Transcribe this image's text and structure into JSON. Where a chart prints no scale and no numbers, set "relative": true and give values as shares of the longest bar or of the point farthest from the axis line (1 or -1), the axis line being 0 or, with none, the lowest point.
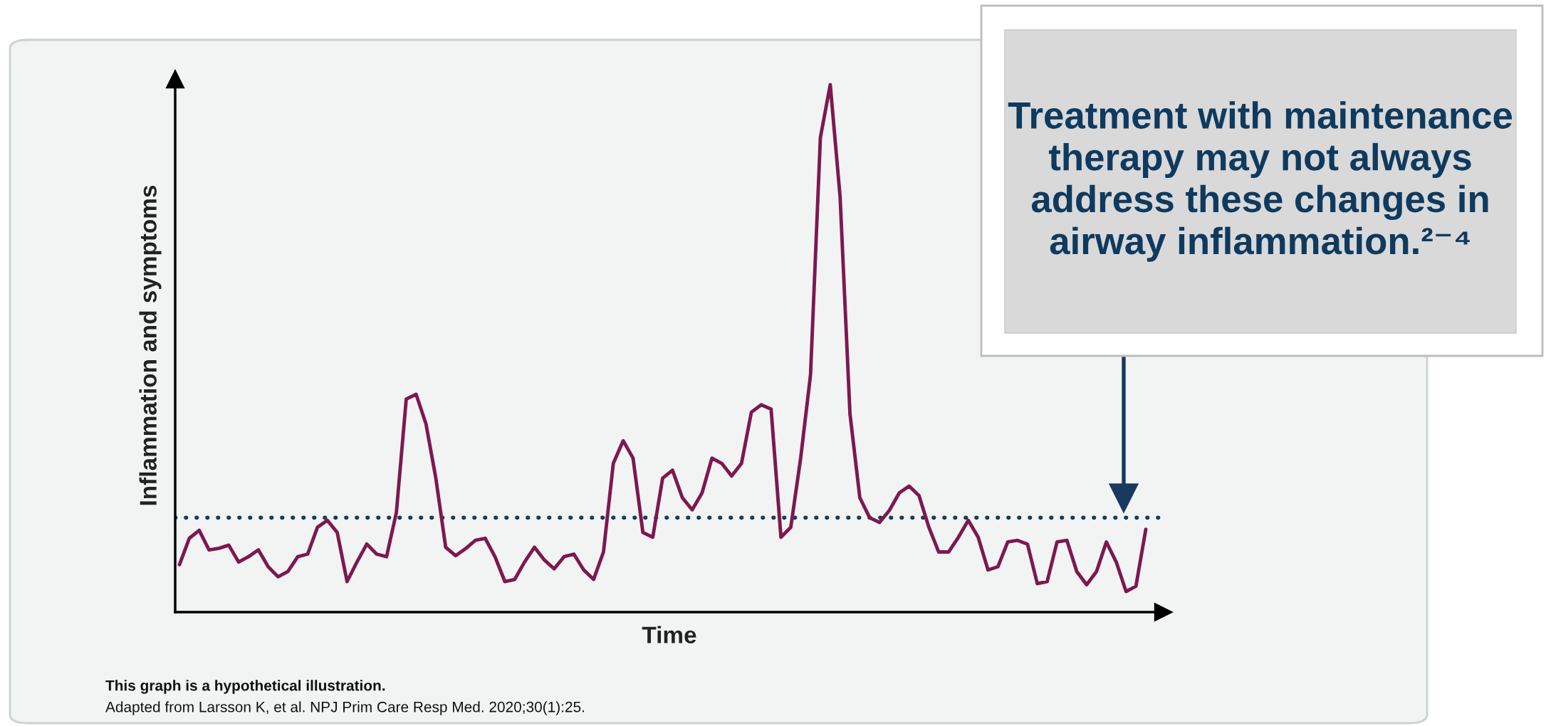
{
  "chart_data": {
    "type": "line",
    "relative": true,
    "xlabel": "Time",
    "ylabel": "Inflammation and symptoms",
    "tick_labels": false,
    "marker": "none",
    "line_style": "solid",
    "categories": [
      null,
      null,
      null,
      null,
      null,
      null,
      null,
      null,
      null,
      null,
      null,
      null,
      null,
      null,
      null,
      null,
      null,
      null,
      null,
      null,
      null,
      null,
      null,
      null,
      null,
      null,
      null,
      null,
      null,
      null,
      null,
      null,
      null,
      null,
      null,
      null,
      null,
      null,
      null,
      null,
      null,
      null,
      null,
      null,
      null,
      null,
      null,
      null,
      null,
      null,
      null,
      null,
      null,
      null,
      null,
      null,
      null,
      null,
      null,
      null,
      null,
      null,
      null,
      null,
      null,
      null,
      null,
      null,
      null,
      null,
      null,
      null,
      null,
      null,
      null,
      null,
      null,
      null,
      null,
      null,
      null,
      null,
      null,
      null,
      null,
      null,
      null,
      null,
      null,
      null,
      null,
      null,
      null,
      null,
      null,
      null,
      null,
      null,
      null
    ],
    "series": [
      {
        "color": "#7d1850",
        "values": [
          0.09,
          0.14,
          0.155,
          0.118,
          0.121,
          0.127,
          0.095,
          0.105,
          0.118,
          0.086,
          0.067,
          0.077,
          0.105,
          0.11,
          0.161,
          0.174,
          0.151,
          0.058,
          0.095,
          0.129,
          0.11,
          0.105,
          0.189,
          0.404,
          0.413,
          0.357,
          0.254,
          0.123,
          0.107,
          0.12,
          0.136,
          0.14,
          0.105,
          0.058,
          0.062,
          0.095,
          0.123,
          0.099,
          0.082,
          0.105,
          0.11,
          0.08,
          0.062,
          0.114,
          0.282,
          0.325,
          0.292,
          0.151,
          0.142,
          0.254,
          0.269,
          0.217,
          0.194,
          0.226,
          0.292,
          0.282,
          0.258,
          0.282,
          0.379,
          0.393,
          0.385,
          0.142,
          0.161,
          0.292,
          0.45,
          0.9,
          1.0,
          0.787,
          0.376,
          0.217,
          0.179,
          0.17,
          0.193,
          0.226,
          0.239,
          0.221,
          0.161,
          0.114,
          0.114,
          0.142,
          0.174,
          0.142,
          0.08,
          0.086,
          0.133,
          0.136,
          0.129,
          0.054,
          0.058,
          0.133,
          0.136,
          0.077,
          0.052,
          0.077,
          0.133,
          0.095,
          0.039,
          0.049,
          0.157
        ]
      }
    ],
    "ref_lines": [
      {
        "axis": "y",
        "value": 0.179,
        "color": "#173a5e",
        "line_style": "dotted"
      }
    ],
    "annotations": [
      "Treatment with maintenance therapy may not always address these changes in airway inflammation.²⁻⁴",
      "This graph is a hypothetical illustration.",
      "Adapted from Larsson K, et al. NPJ Prim Care Resp Med. 2020;30(1):25."
    ]
  }
}
